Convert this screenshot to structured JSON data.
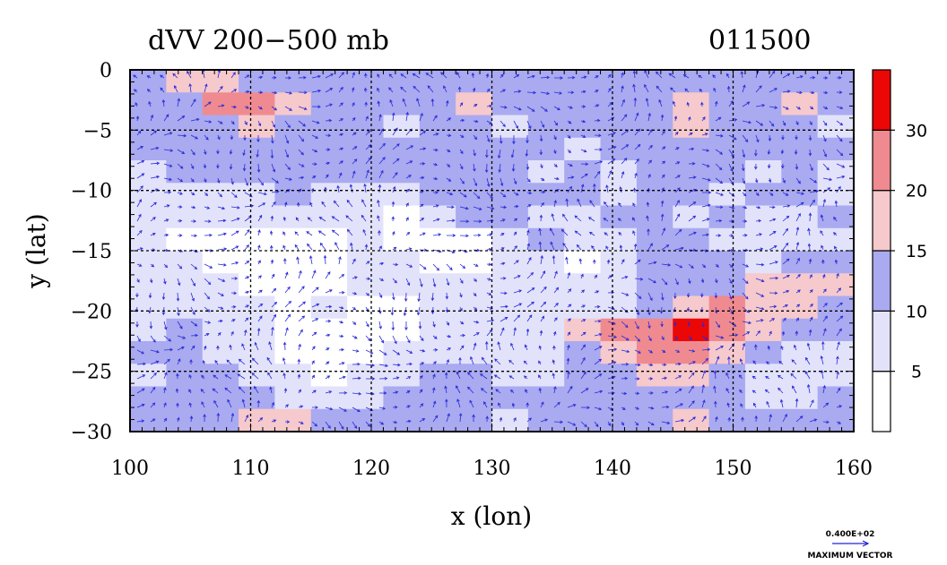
{
  "chart_data": {
    "type": "heatmap",
    "title": "dVV 200−500 mb",
    "date_label": "011500",
    "xlabel": "x (lon)",
    "ylabel": "y (lat)",
    "xlim": [
      100,
      160
    ],
    "ylim": [
      -30,
      0
    ],
    "x_ticks": [
      100,
      110,
      120,
      130,
      140,
      150,
      160
    ],
    "x_tick_labels": [
      "100",
      "110",
      "120",
      "130",
      "140",
      "150",
      "160"
    ],
    "y_ticks": [
      0,
      -5,
      -10,
      -15,
      -20,
      -25,
      -30
    ],
    "y_tick_labels": [
      "0",
      "−5",
      "−10",
      "−15",
      "−20",
      "−25",
      "−30"
    ],
    "grid": true,
    "colorbar": {
      "levels": [
        0,
        5,
        10,
        15,
        20,
        30,
        40
      ],
      "labels": [
        "5",
        "10",
        "15",
        "20",
        "30"
      ],
      "colors": [
        "#ffffff",
        "#e2e2fb",
        "#a9aaf0",
        "#f6c9cc",
        "#ef8b90",
        "#ec0707"
      ]
    },
    "field": [
      [
        2,
        3,
        3,
        2,
        2,
        2,
        2,
        2,
        2,
        2,
        2,
        2,
        2,
        2,
        2,
        2,
        2,
        2,
        2,
        2
      ],
      [
        2,
        2,
        4,
        4,
        3,
        2,
        2,
        2,
        2,
        3,
        2,
        2,
        2,
        2,
        2,
        3,
        2,
        2,
        3,
        2
      ],
      [
        2,
        2,
        2,
        3,
        2,
        2,
        2,
        1,
        2,
        2,
        1,
        2,
        2,
        2,
        2,
        3,
        2,
        2,
        2,
        1
      ],
      [
        2,
        2,
        2,
        2,
        2,
        2,
        2,
        2,
        2,
        2,
        2,
        2,
        1,
        2,
        2,
        2,
        2,
        2,
        2,
        2
      ],
      [
        1,
        2,
        2,
        2,
        2,
        2,
        2,
        2,
        2,
        2,
        2,
        1,
        2,
        1,
        2,
        2,
        2,
        1,
        2,
        1
      ],
      [
        1,
        1,
        1,
        1,
        2,
        1,
        1,
        1,
        2,
        2,
        2,
        2,
        2,
        1,
        2,
        2,
        1,
        2,
        2,
        1
      ],
      [
        1,
        1,
        1,
        1,
        1,
        1,
        1,
        0,
        1,
        2,
        2,
        1,
        1,
        2,
        2,
        1,
        2,
        1,
        1,
        2
      ],
      [
        1,
        0,
        0,
        0,
        0,
        0,
        1,
        0,
        0,
        0,
        1,
        2,
        1,
        1,
        2,
        2,
        1,
        1,
        1,
        1
      ],
      [
        1,
        1,
        0,
        0,
        0,
        0,
        1,
        1,
        0,
        0,
        1,
        1,
        0,
        1,
        2,
        2,
        2,
        1,
        2,
        2
      ],
      [
        1,
        1,
        1,
        0,
        0,
        0,
        1,
        1,
        1,
        1,
        1,
        1,
        1,
        1,
        2,
        2,
        2,
        3,
        3,
        3
      ],
      [
        1,
        1,
        1,
        1,
        0,
        1,
        0,
        0,
        1,
        1,
        1,
        1,
        1,
        1,
        2,
        3,
        4,
        3,
        3,
        2
      ],
      [
        1,
        2,
        1,
        1,
        0,
        0,
        0,
        0,
        1,
        1,
        1,
        1,
        3,
        4,
        4,
        5,
        4,
        3,
        2,
        2
      ],
      [
        2,
        2,
        1,
        1,
        0,
        0,
        0,
        1,
        1,
        1,
        1,
        1,
        2,
        3,
        4,
        4,
        3,
        2,
        1,
        1
      ],
      [
        1,
        2,
        2,
        1,
        1,
        0,
        1,
        1,
        2,
        2,
        1,
        1,
        2,
        2,
        3,
        3,
        2,
        1,
        1,
        1
      ],
      [
        2,
        2,
        2,
        2,
        1,
        1,
        1,
        2,
        2,
        2,
        2,
        2,
        2,
        2,
        2,
        2,
        2,
        1,
        1,
        2
      ],
      [
        2,
        2,
        2,
        3,
        3,
        2,
        2,
        2,
        2,
        2,
        1,
        2,
        2,
        2,
        2,
        3,
        2,
        2,
        2,
        2
      ]
    ],
    "max_vector": {
      "value": "0.400E+02",
      "label": "MAXIMUM VECTOR"
    }
  }
}
